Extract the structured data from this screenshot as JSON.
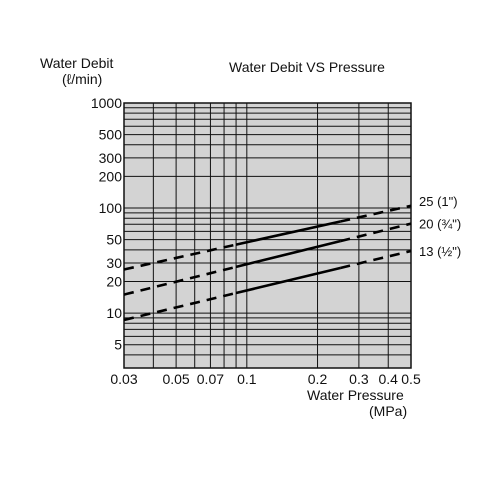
{
  "chart_data": {
    "type": "line",
    "title": "Water Debit VS Pressure",
    "ylabel": "Water Debit",
    "ylabel_unit": "(ℓ/min)",
    "xlabel": "Water Pressure",
    "xlabel_unit": "(MPa)",
    "x_scale": "log",
    "y_scale": "log",
    "xlim": [
      0.03,
      0.5
    ],
    "ylim": [
      3,
      1000
    ],
    "x_ticks": [
      0.03,
      0.05,
      0.07,
      0.1,
      0.2,
      0.3,
      0.4,
      0.5
    ],
    "x_tick_labels": [
      "0.03",
      "0.05",
      "0.07",
      "0.1",
      "0.2",
      "0.3",
      "0.4",
      "0.5"
    ],
    "y_ticks": [
      5,
      10,
      20,
      30,
      50,
      100,
      200,
      300,
      500,
      1000
    ],
    "y_tick_labels": [
      "5",
      "10",
      "20",
      "30",
      "50",
      "100",
      "200",
      "300",
      "500",
      "1000"
    ],
    "x_grid": [
      0.03,
      0.04,
      0.05,
      0.06,
      0.07,
      0.08,
      0.09,
      0.1,
      0.2,
      0.3,
      0.4,
      0.5
    ],
    "y_grid": [
      3,
      4,
      5,
      6,
      7,
      8,
      9,
      10,
      20,
      30,
      40,
      50,
      60,
      70,
      80,
      90,
      100,
      200,
      300,
      400,
      500,
      600,
      700,
      800,
      900,
      1000
    ],
    "grid": true,
    "background": "#d3d3d3",
    "series": [
      {
        "name": "25 (1\")",
        "x": [
          0.03,
          0.5
        ],
        "y": [
          26,
          105
        ],
        "solid_range": [
          0.09,
          0.25
        ]
      },
      {
        "name": "20 (¾\")",
        "x": [
          0.03,
          0.5
        ],
        "y": [
          15,
          71
        ],
        "solid_range": [
          0.09,
          0.25
        ]
      },
      {
        "name": "13 (½\")",
        "x": [
          0.03,
          0.5
        ],
        "y": [
          8.6,
          39
        ],
        "solid_range": [
          0.09,
          0.25
        ]
      }
    ],
    "legend_placement": "right of lines"
  }
}
